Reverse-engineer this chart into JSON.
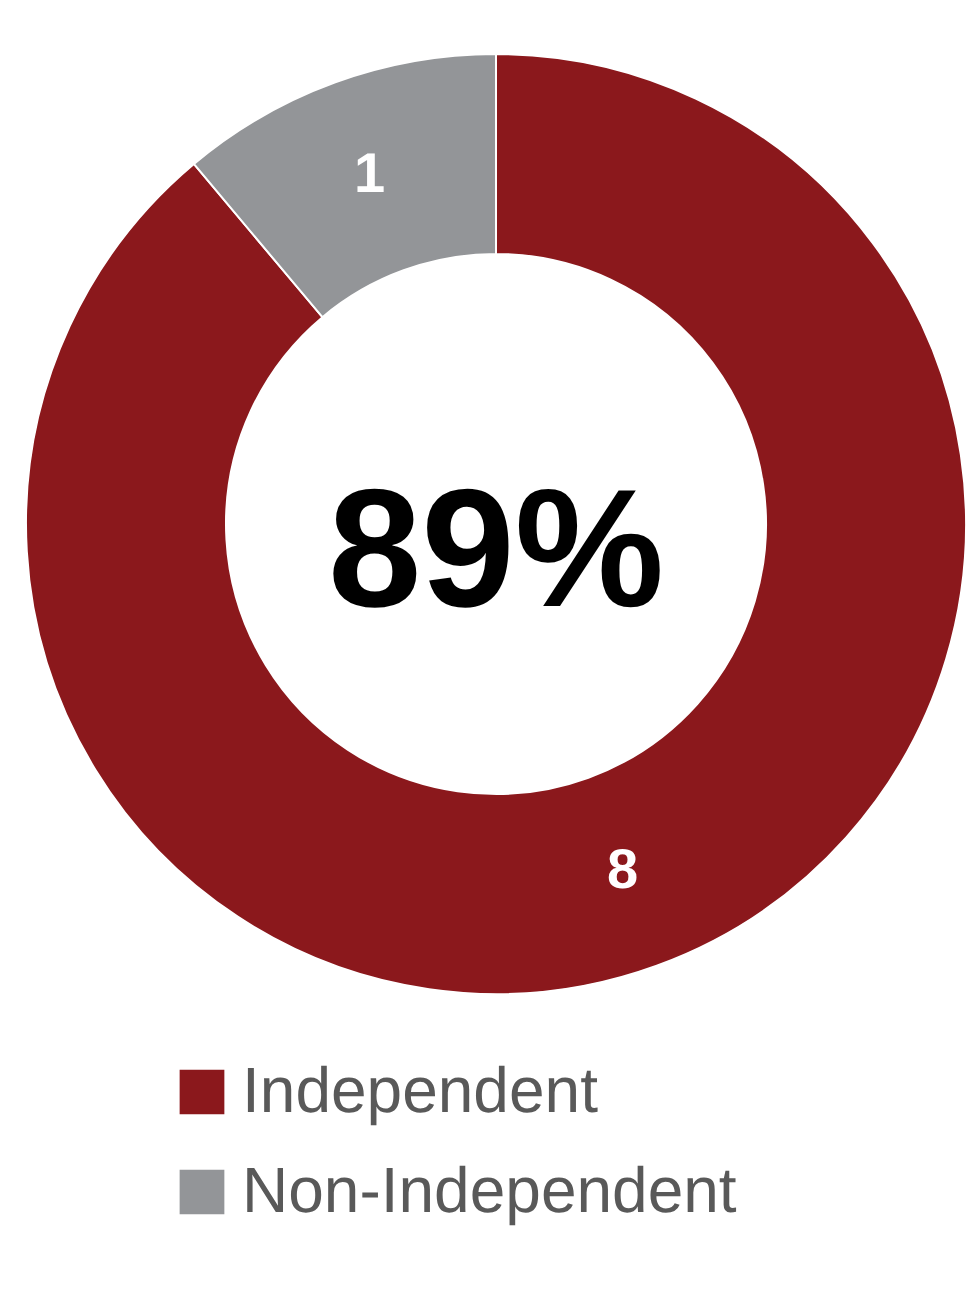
{
  "chart_data": {
    "type": "donut",
    "categories": [
      "Independent",
      "Non-Independent"
    ],
    "values": [
      8,
      1
    ],
    "colors": [
      "#8b181c",
      "#939598"
    ],
    "data_labels": true,
    "annotations": [
      "89%"
    ],
    "legend": "bottom"
  }
}
